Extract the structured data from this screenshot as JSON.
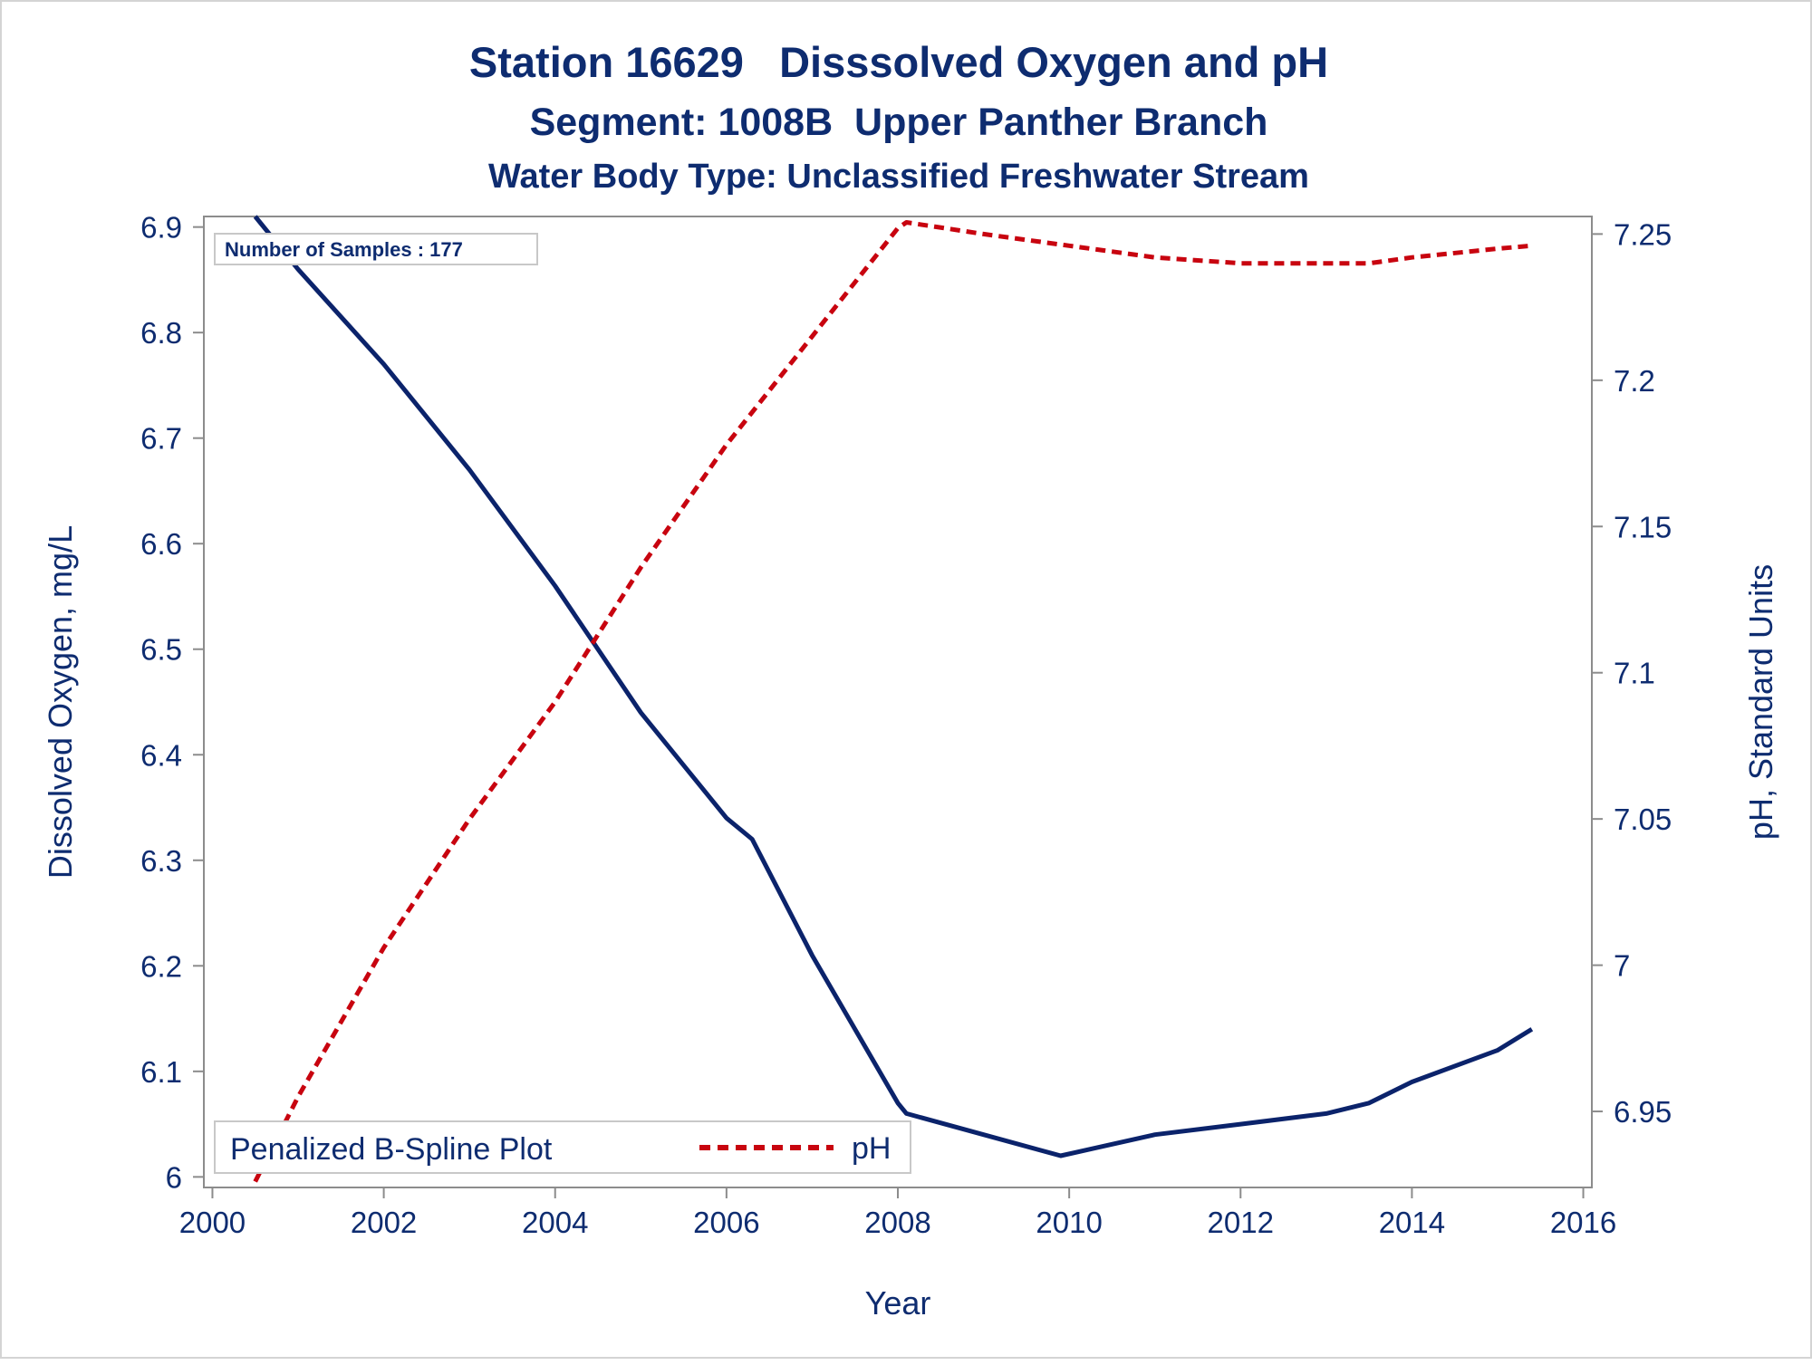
{
  "colors": {
    "text": "#0e2c70",
    "do_line": "#0b236b",
    "ph_line": "#c8040f",
    "axis": "#8c8c8c"
  },
  "chart_data": {
    "type": "line",
    "title": "Station 16629   Disssolved Oxygen and pH",
    "subtitle": "Segment: 1008B  Upper Panther Branch",
    "subtitle2": "Water Body Type: Unclassified Freshwater Stream",
    "xlabel": "Year",
    "ylabel": "Dissolved Oxygen, mg/L",
    "y2label": "pH, Standard Units",
    "xlim": [
      1999.9,
      2016.1
    ],
    "ylim": [
      5.99,
      6.91
    ],
    "y2lim": [
      6.924,
      7.256
    ],
    "x_ticks": [
      2000,
      2002,
      2004,
      2006,
      2008,
      2010,
      2012,
      2014,
      2016
    ],
    "x_tick_labels": [
      "2000",
      "2002",
      "2004",
      "2006",
      "2008",
      "2010",
      "2012",
      "2014",
      "2016"
    ],
    "y_ticks": [
      6.0,
      6.1,
      6.2,
      6.3,
      6.4,
      6.5,
      6.6,
      6.7,
      6.8,
      6.9
    ],
    "y_tick_labels": [
      "6",
      "6.1",
      "6.2",
      "6.3",
      "6.4",
      "6.5",
      "6.6",
      "6.7",
      "6.8",
      "6.9"
    ],
    "y2_ticks": [
      6.95,
      7.0,
      7.05,
      7.1,
      7.15,
      7.2,
      7.25
    ],
    "y2_tick_labels": [
      "6.95",
      "7",
      "7.05",
      "7.1",
      "7.15",
      "7.2",
      "7.25"
    ],
    "annotation": "Number of Samples : 177",
    "legend": {
      "title": "Penalized B-Spline Plot",
      "entries": [
        "pH"
      ],
      "placement": "bottom-left"
    },
    "grid": false,
    "series": [
      {
        "axis": "left",
        "style": "solid",
        "x": [
          2000.5,
          2001.0,
          2002.0,
          2003.0,
          2004.0,
          2005.0,
          2006.0,
          2006.3,
          2007.0,
          2008.0,
          2008.1,
          2009.0,
          2009.9,
          2011.0,
          2012.0,
          2013.0,
          2013.5,
          2014.0,
          2015.0,
          2015.4
        ],
        "values": [
          6.91,
          6.86,
          6.77,
          6.67,
          6.56,
          6.44,
          6.34,
          6.32,
          6.21,
          6.07,
          6.06,
          6.04,
          6.02,
          6.04,
          6.05,
          6.06,
          6.07,
          6.09,
          6.12,
          6.14
        ]
      },
      {
        "name": "pH",
        "axis": "right",
        "style": "dashed",
        "x": [
          2000.5,
          2001.0,
          2002.0,
          2003.0,
          2004.0,
          2005.0,
          2006.0,
          2007.0,
          2008.0,
          2008.1,
          2009.0,
          2010.0,
          2011.0,
          2012.0,
          2013.0,
          2013.5,
          2014.0,
          2015.0,
          2015.4
        ],
        "values": [
          6.926,
          6.955,
          7.006,
          7.05,
          7.09,
          7.136,
          7.178,
          7.215,
          7.252,
          7.254,
          7.25,
          7.246,
          7.242,
          7.24,
          7.24,
          7.24,
          7.242,
          7.245,
          7.246
        ]
      }
    ]
  }
}
